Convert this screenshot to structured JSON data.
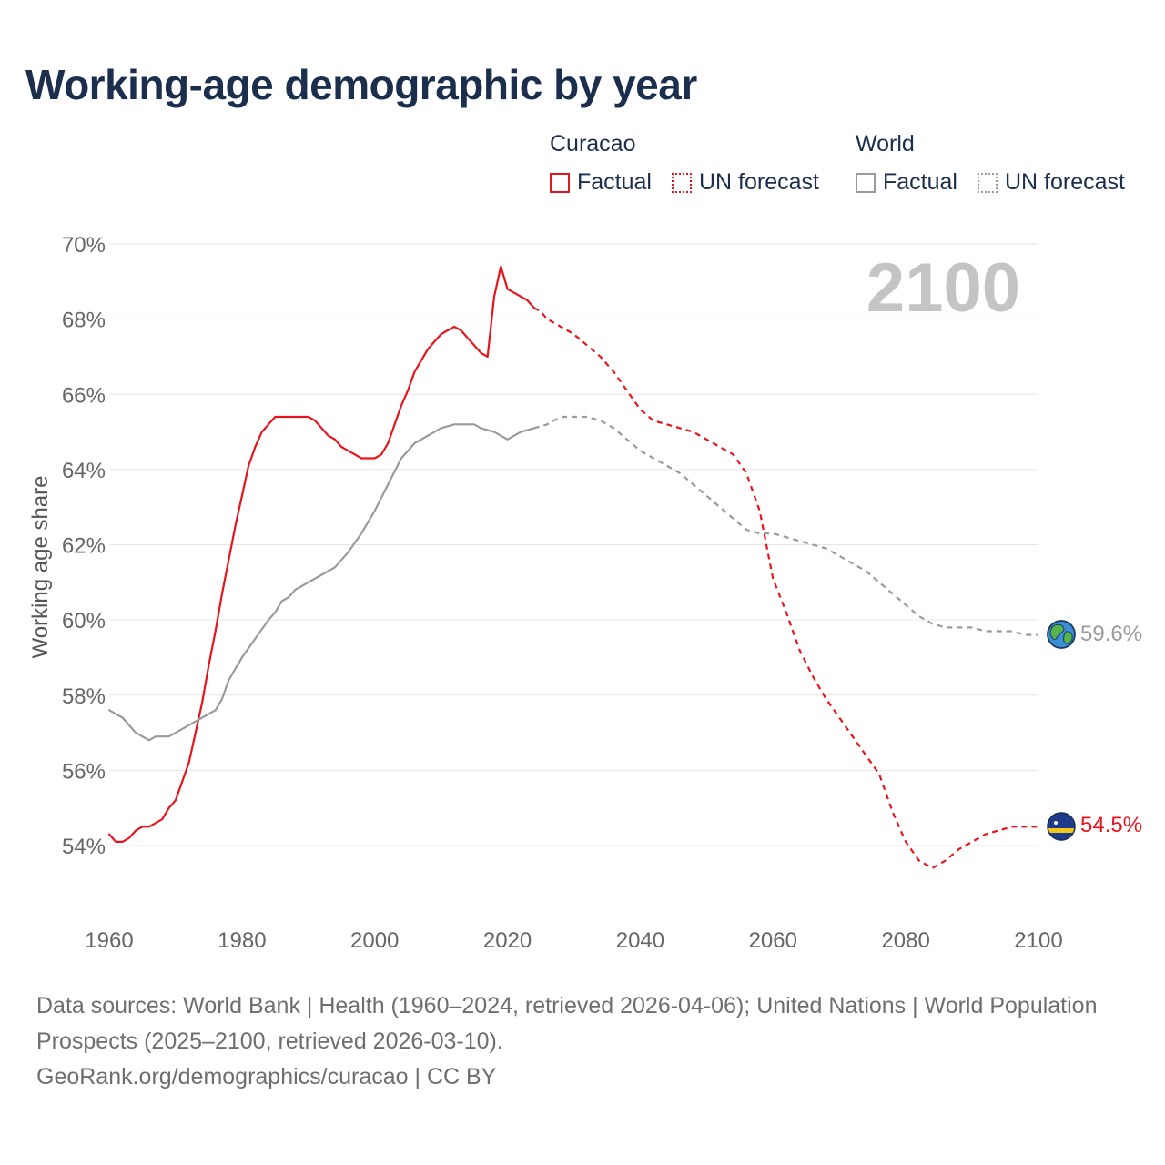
{
  "title": "Working-age demographic by year",
  "legend": {
    "groups": [
      {
        "name": "Curacao",
        "items": [
          "Factual",
          "UN forecast"
        ],
        "color": "#e8141c"
      },
      {
        "name": "World",
        "items": [
          "Factual",
          "UN forecast"
        ],
        "color": "#9a9a9a"
      }
    ]
  },
  "year_watermark": "2100",
  "end_labels": {
    "world": "59.6%",
    "curacao": "54.5%",
    "world_icon": "globe-icon",
    "curacao_icon": "curacao-flag-icon"
  },
  "chart_data": {
    "type": "line",
    "title": "Working-age demographic by year",
    "xlabel": "",
    "ylabel": "Working age share",
    "xlim": [
      1960,
      2100
    ],
    "ylim": [
      52,
      70
    ],
    "x_ticks": [
      1960,
      1980,
      2000,
      2020,
      2040,
      2060,
      2080,
      2100
    ],
    "x_tick_labels": [
      "1960",
      "1980",
      "2000",
      "2020",
      "2040",
      "2060",
      "2080",
      "2100"
    ],
    "y_ticks": [
      54,
      56,
      58,
      60,
      62,
      64,
      66,
      68,
      70
    ],
    "y_tick_labels": [
      "54%",
      "56%",
      "58%",
      "60%",
      "62%",
      "64%",
      "66%",
      "68%",
      "70%"
    ],
    "grid": true,
    "series": [
      {
        "name": "Curacao — Factual",
        "style": "solid",
        "color": "#e8141c",
        "x": [
          1960,
          1961,
          1962,
          1963,
          1964,
          1965,
          1966,
          1968,
          1969,
          1970,
          1971,
          1972,
          1973,
          1974,
          1975,
          1976,
          1977,
          1978,
          1979,
          1980,
          1981,
          1982,
          1983,
          1984,
          1985,
          1986,
          1987,
          1988,
          1989,
          1990,
          1991,
          1992,
          1993,
          1994,
          1995,
          1996,
          1997,
          1998,
          1999,
          2000,
          2001,
          2002,
          2003,
          2004,
          2005,
          2006,
          2007,
          2008,
          2009,
          2010,
          2011,
          2012,
          2013,
          2014,
          2015,
          2016,
          2017,
          2018,
          2019,
          2020,
          2021,
          2022,
          2023,
          2024
        ],
        "y": [
          54.3,
          54.1,
          54.1,
          54.2,
          54.4,
          54.5,
          54.5,
          54.7,
          55.0,
          55.2,
          55.7,
          56.2,
          57.0,
          57.8,
          58.8,
          59.7,
          60.7,
          61.6,
          62.5,
          63.3,
          64.1,
          64.6,
          65.0,
          65.2,
          65.4,
          65.4,
          65.4,
          65.4,
          65.4,
          65.4,
          65.3,
          65.1,
          64.9,
          64.8,
          64.6,
          64.5,
          64.4,
          64.3,
          64.3,
          64.3,
          64.4,
          64.7,
          65.2,
          65.7,
          66.1,
          66.6,
          66.9,
          67.2,
          67.4,
          67.6,
          67.7,
          67.8,
          67.7,
          67.5,
          67.3,
          67.1,
          67.0,
          68.6,
          69.4,
          68.8,
          68.7,
          68.6,
          68.5,
          68.3
        ]
      },
      {
        "name": "Curacao — UN forecast",
        "style": "dashed",
        "color": "#e8141c",
        "x": [
          2024,
          2025,
          2026,
          2028,
          2030,
          2032,
          2034,
          2036,
          2038,
          2040,
          2042,
          2044,
          2046,
          2048,
          2050,
          2052,
          2054,
          2056,
          2058,
          2060,
          2062,
          2064,
          2066,
          2068,
          2070,
          2072,
          2074,
          2076,
          2078,
          2080,
          2082,
          2084,
          2086,
          2088,
          2090,
          2092,
          2094,
          2096,
          2098,
          2100
        ],
        "y": [
          68.3,
          68.2,
          68.0,
          67.8,
          67.6,
          67.3,
          67.0,
          66.6,
          66.1,
          65.6,
          65.3,
          65.2,
          65.1,
          65.0,
          64.8,
          64.6,
          64.4,
          63.9,
          62.9,
          61.1,
          60.2,
          59.2,
          58.5,
          57.9,
          57.4,
          56.9,
          56.4,
          55.9,
          54.9,
          54.1,
          53.6,
          53.4,
          53.6,
          53.9,
          54.1,
          54.3,
          54.4,
          54.5,
          54.5,
          54.5
        ]
      },
      {
        "name": "World — Factual",
        "style": "solid",
        "color": "#9a9a9a",
        "x": [
          1960,
          1962,
          1964,
          1966,
          1967,
          1969,
          1970,
          1972,
          1974,
          1976,
          1977,
          1978,
          1980,
          1982,
          1984,
          1985,
          1986,
          1987,
          1988,
          1990,
          1992,
          1994,
          1996,
          1998,
          2000,
          2002,
          2004,
          2006,
          2008,
          2010,
          2012,
          2014,
          2015,
          2016,
          2018,
          2019,
          2020,
          2021,
          2022,
          2024
        ],
        "y": [
          57.6,
          57.4,
          57.0,
          56.8,
          56.9,
          56.9,
          57.0,
          57.2,
          57.4,
          57.6,
          57.9,
          58.4,
          59.0,
          59.5,
          60.0,
          60.2,
          60.5,
          60.6,
          60.8,
          61.0,
          61.2,
          61.4,
          61.8,
          62.3,
          62.9,
          63.6,
          64.3,
          64.7,
          64.9,
          65.1,
          65.2,
          65.2,
          65.2,
          65.1,
          65.0,
          64.9,
          64.8,
          64.9,
          65.0,
          65.1
        ]
      },
      {
        "name": "World — UN forecast",
        "style": "dashed",
        "color": "#9a9a9a",
        "x": [
          2024,
          2026,
          2028,
          2030,
          2032,
          2034,
          2036,
          2038,
          2040,
          2042,
          2044,
          2046,
          2048,
          2050,
          2052,
          2054,
          2056,
          2058,
          2060,
          2062,
          2064,
          2066,
          2068,
          2070,
          2072,
          2074,
          2076,
          2078,
          2080,
          2082,
          2084,
          2086,
          2088,
          2090,
          2092,
          2094,
          2096,
          2098,
          2100
        ],
        "y": [
          65.1,
          65.2,
          65.4,
          65.4,
          65.4,
          65.3,
          65.1,
          64.8,
          64.5,
          64.3,
          64.1,
          63.9,
          63.6,
          63.3,
          63.0,
          62.7,
          62.4,
          62.3,
          62.3,
          62.2,
          62.1,
          62.0,
          61.9,
          61.7,
          61.5,
          61.3,
          61.0,
          60.7,
          60.4,
          60.1,
          59.9,
          59.8,
          59.8,
          59.8,
          59.7,
          59.7,
          59.7,
          59.6,
          59.6
        ]
      }
    ]
  },
  "footer": {
    "line1": "Data sources: World Bank | Health (1960–2024, retrieved 2026-04-06); United Nations | World Population Prospects (2025–2100, retrieved 2026-03-10).",
    "line2": "GeoRank.org/demographics/curacao | CC BY"
  }
}
